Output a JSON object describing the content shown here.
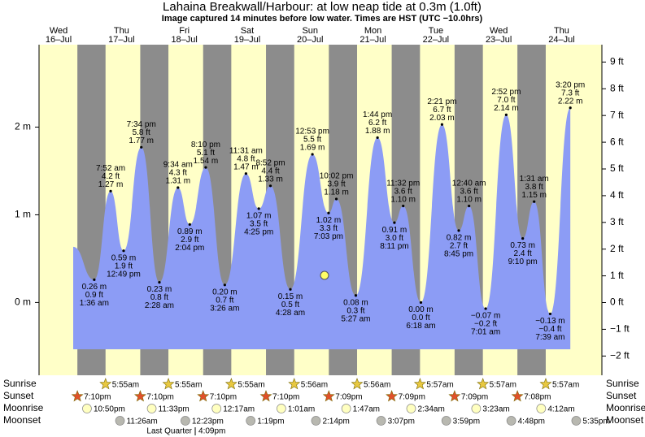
{
  "chart_data": {
    "type": "tide",
    "title": "Lahaina Breakwall/Harbour: at low  neap tide at 0.3m (1.0ft)",
    "subtitle": "Image captured 14 minutes before low water. Times are HST (UTC −10.0hrs)",
    "ylim": [
      -0.83,
      2.94
    ],
    "yticks": [
      {
        "value": 0,
        "label": "0 m"
      },
      {
        "value": 1,
        "label": "1 m"
      },
      {
        "value": 2,
        "label": "2 m"
      }
    ],
    "y2lim": [
      -2.72,
      9.65
    ],
    "y2ticks": [
      {
        "value": -2,
        "label": "−2 ft"
      },
      {
        "value": -1,
        "label": "−1 ft"
      },
      {
        "value": 0,
        "label": "0 ft"
      },
      {
        "value": 1,
        "label": "1 ft"
      },
      {
        "value": 2,
        "label": "2 ft"
      },
      {
        "value": 3,
        "label": "3 ft"
      },
      {
        "value": 4,
        "label": "4 ft"
      },
      {
        "value": 5,
        "label": "5 ft"
      },
      {
        "value": 6,
        "label": "6 ft"
      },
      {
        "value": 7,
        "label": "7 ft"
      },
      {
        "value": 8,
        "label": "8 ft"
      },
      {
        "value": 9,
        "label": "9 ft"
      }
    ],
    "colors": {
      "day": "#ffffc8",
      "night": "#8c8c8c",
      "tide": "#8c9cf5",
      "weekday": "#e00000"
    },
    "almanac_labels": [
      "Sunrise",
      "Sunset",
      "Moonrise",
      "Moonset"
    ],
    "moon_phase": {
      "name": "Last Quarter",
      "time": "4:09pm",
      "day": "18–Jul"
    },
    "days": [
      {
        "weekday": "Wed",
        "date": "16–Jul",
        "sunrise": null,
        "sunset": "7:10pm",
        "moonrise": "10:50pm",
        "moonset": null,
        "tides": []
      },
      {
        "weekday": "Thu",
        "date": "17–Jul",
        "sunrise": "5:55am",
        "sunset": "7:10pm",
        "moonrise": "11:33pm",
        "moonset": "11:26am",
        "tides": [
          {
            "time": "1:36 am",
            "m": {
              "value": 0.26,
              "label": "0.26 m"
            },
            "ft": {
              "value": 0.9,
              "label": "0.9 ft"
            }
          },
          {
            "time": "7:52 am",
            "m": {
              "value": 1.27,
              "label": "1.27 m"
            },
            "ft": {
              "value": 4.2,
              "label": "4.2 ft"
            }
          },
          {
            "time": "12:49 pm",
            "m": {
              "value": 0.59,
              "label": "0.59 m"
            },
            "ft": {
              "value": 1.9,
              "label": "1.9 ft"
            }
          },
          {
            "time": "7:34 pm",
            "m": {
              "value": 1.77,
              "label": "1.77 m"
            },
            "ft": {
              "value": 5.8,
              "label": "5.8 ft"
            }
          }
        ]
      },
      {
        "weekday": "Fri",
        "date": "18–Jul",
        "sunrise": "5:55am",
        "sunset": "7:10pm",
        "moonrise": null,
        "moonset": "12:23pm",
        "tides": [
          {
            "time": "2:28 am",
            "m": {
              "value": 0.23,
              "label": "0.23 m"
            },
            "ft": {
              "value": 0.8,
              "label": "0.8 ft"
            }
          },
          {
            "time": "9:34 am",
            "m": {
              "value": 1.31,
              "label": "1.31 m"
            },
            "ft": {
              "value": 4.3,
              "label": "4.3 ft"
            }
          },
          {
            "time": "2:04 pm",
            "m": {
              "value": 0.89,
              "label": "0.89 m"
            },
            "ft": {
              "value": 2.9,
              "label": "2.9 ft"
            }
          },
          {
            "time": "8:10 pm",
            "m": {
              "value": 1.54,
              "label": "1.54 m"
            },
            "ft": {
              "value": 5.1,
              "label": "5.1 ft"
            }
          }
        ]
      },
      {
        "weekday": "Sat",
        "date": "19–Jul",
        "sunrise": "5:55am",
        "sunset": "7:10pm",
        "moonrise": "12:17am",
        "moonset": "1:19pm",
        "tides": [
          {
            "time": "3:26 am",
            "m": {
              "value": 0.2,
              "label": "0.20 m"
            },
            "ft": {
              "value": 0.7,
              "label": "0.7 ft"
            }
          },
          {
            "time": "11:31 am",
            "m": {
              "value": 1.47,
              "label": "1.47 m"
            },
            "ft": {
              "value": 4.8,
              "label": "4.8 ft"
            }
          },
          {
            "time": "4:25 pm",
            "m": {
              "value": 1.07,
              "label": "1.07 m"
            },
            "ft": {
              "value": 3.5,
              "label": "3.5 ft"
            }
          },
          {
            "time": "8:52 pm",
            "m": {
              "value": 1.33,
              "label": "1.33 m"
            },
            "ft": {
              "value": 4.4,
              "label": "4.4 ft"
            }
          }
        ]
      },
      {
        "weekday": "Sun",
        "date": "20–Jul",
        "sunrise": "5:56am",
        "sunset": "7:09pm",
        "moonrise": "1:01am",
        "moonset": "2:14pm",
        "tides": [
          {
            "time": "4:28 am",
            "m": {
              "value": 0.15,
              "label": "0.15 m"
            },
            "ft": {
              "value": 0.5,
              "label": "0.5 ft"
            }
          },
          {
            "time": "12:53 pm",
            "m": {
              "value": 1.69,
              "label": "1.69 m"
            },
            "ft": {
              "value": 5.5,
              "label": "5.5 ft"
            }
          },
          {
            "time": "7:03 pm",
            "m": {
              "value": 1.02,
              "label": "1.02 m"
            },
            "ft": {
              "value": 3.3,
              "label": "3.3 ft"
            }
          },
          {
            "time": "10:02 pm",
            "m": {
              "value": 1.18,
              "label": "1.18 m"
            },
            "ft": {
              "value": 3.9,
              "label": "3.9 ft"
            }
          }
        ]
      },
      {
        "weekday": "Mon",
        "date": "21–Jul",
        "sunrise": "5:56am",
        "sunset": "7:09pm",
        "moonrise": "1:47am",
        "moonset": "3:07pm",
        "tides": [
          {
            "time": "5:27 am",
            "m": {
              "value": 0.08,
              "label": "0.08 m"
            },
            "ft": {
              "value": 0.3,
              "label": "0.3 ft"
            }
          },
          {
            "time": "1:44 pm",
            "m": {
              "value": 1.88,
              "label": "1.88 m"
            },
            "ft": {
              "value": 6.2,
              "label": "6.2 ft"
            }
          },
          {
            "time": "8:11 pm",
            "m": {
              "value": 0.91,
              "label": "0.91 m"
            },
            "ft": {
              "value": 3.0,
              "label": "3.0 ft"
            }
          },
          {
            "time": "11:32 pm",
            "m": {
              "value": 1.1,
              "label": "1.10 m"
            },
            "ft": {
              "value": 3.6,
              "label": "3.6 ft"
            }
          }
        ]
      },
      {
        "weekday": "Tue",
        "date": "22–Jul",
        "sunrise": "5:57am",
        "sunset": "7:09pm",
        "moonrise": "2:34am",
        "moonset": "3:59pm",
        "tides": [
          {
            "time": "6:18 am",
            "m": {
              "value": 0.0,
              "label": "0.00 m"
            },
            "ft": {
              "value": 0.0,
              "label": "0.0 ft"
            }
          },
          {
            "time": "2:21 pm",
            "m": {
              "value": 2.03,
              "label": "2.03 m"
            },
            "ft": {
              "value": 6.7,
              "label": "6.7 ft"
            }
          },
          {
            "time": "8:45 pm",
            "m": {
              "value": 0.82,
              "label": "0.82 m"
            },
            "ft": {
              "value": 2.7,
              "label": "2.7 ft"
            }
          }
        ]
      },
      {
        "weekday": "Wed",
        "date": "23–Jul",
        "sunrise": "5:57am",
        "sunset": "7:08pm",
        "moonrise": "3:23am",
        "moonset": "4:48pm",
        "tides": [
          {
            "time": "12:40 am",
            "m": {
              "value": 1.1,
              "label": "1.10 m"
            },
            "ft": {
              "value": 3.6,
              "label": "3.6 ft"
            }
          },
          {
            "time": "7:01 am",
            "m": {
              "value": -0.07,
              "label": "−0.07 m"
            },
            "ft": {
              "value": -0.2,
              "label": "−0.2 ft"
            }
          },
          {
            "time": "2:52 pm",
            "m": {
              "value": 2.14,
              "label": "2.14 m"
            },
            "ft": {
              "value": 7.0,
              "label": "7.0 ft"
            }
          },
          {
            "time": "9:10 pm",
            "m": {
              "value": 0.73,
              "label": "0.73 m"
            },
            "ft": {
              "value": 2.4,
              "label": "2.4 ft"
            }
          }
        ]
      },
      {
        "weekday": "Thu",
        "date": "24–Jul",
        "sunrise": "5:57am",
        "sunset": null,
        "moonrise": "4:12am",
        "moonset": "5:35pm",
        "tides": [
          {
            "time": "1:31 am",
            "m": {
              "value": 1.15,
              "label": "1.15 m"
            },
            "ft": {
              "value": 3.8,
              "label": "3.8 ft"
            }
          },
          {
            "time": "7:39 am",
            "m": {
              "value": -0.13,
              "label": "−0.13 m"
            },
            "ft": {
              "value": -0.4,
              "label": "−0.4 ft"
            }
          },
          {
            "time": "3:20 pm",
            "m": {
              "value": 2.22,
              "label": "2.22 m"
            },
            "ft": {
              "value": 7.3,
              "label": "7.3 ft"
            }
          }
        ]
      }
    ]
  }
}
